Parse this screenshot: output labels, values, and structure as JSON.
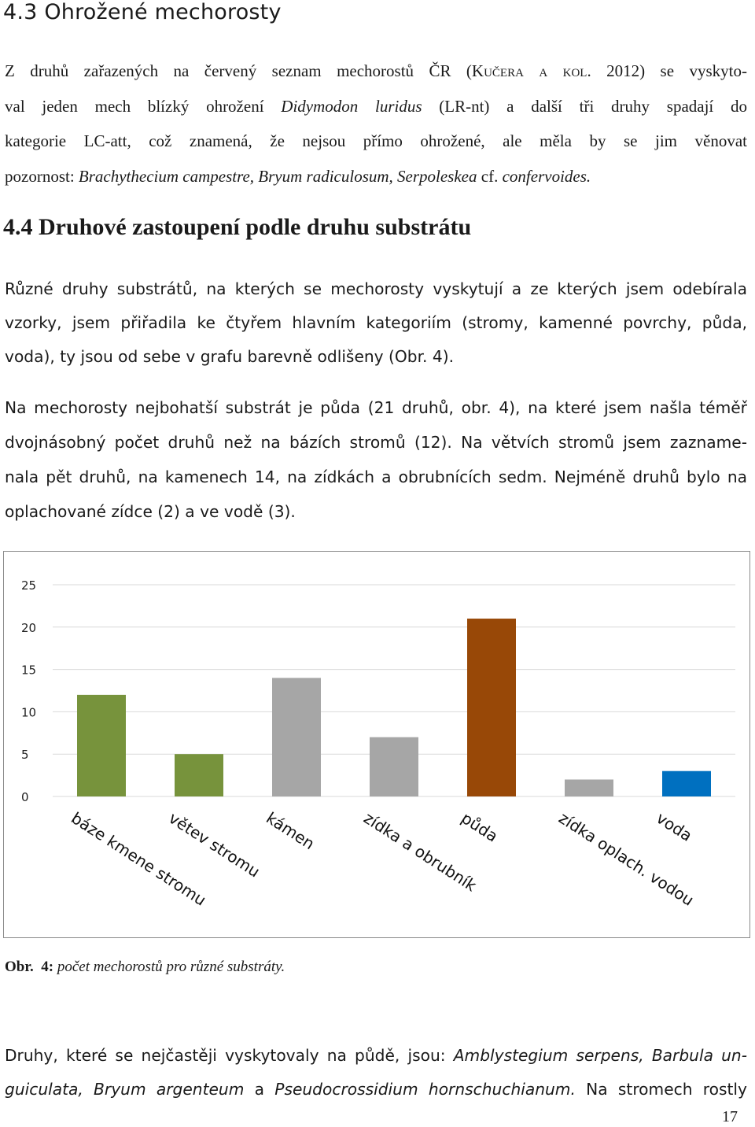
{
  "section_43": {
    "heading": "4.3 Ohrožené mechorosty",
    "p_l1a": "Z druhů zařazených na červený seznam mechorostů ČR (",
    "p_l1_author": "Kučera a kol.",
    "p_l1b": " 2012) se vyskyto-",
    "p_l2a": "val jeden mech blízký ohrožení ",
    "p_l2_species": "Didymodon luridus",
    "p_l2b": " (LR-nt) a další tři druhy spadají do",
    "p_l3": "kategorie LC-att, což znamená, že nejsou přímo ohrožené, ale měla by se jim věnovat",
    "p_l4a": "pozornost: ",
    "p_l4_species": "Brachythecium campestre, Bryum radiculosum, Serpoleskea",
    "p_l4_cf": " cf. ",
    "p_l4_species2": "confervoides."
  },
  "section_44": {
    "heading": "4.4 Druhové zastoupení podle druhu substrátu",
    "p1_l1": "Různé druhy substrátů, na kterých se mechorosty vyskytují a ze kterých jsem odebírala",
    "p1_l2": "vzorky, jsem přiřadila ke čtyřem hlavním kategoriím (stromy, kamenné povrchy, půda,",
    "p1_l3": "voda), ty jsou od sebe v grafu barevně odlišeny (Obr. 4).",
    "p2_l1": "Na mechorosty nejbohatší substrát je půda (21 druhů, obr. 4), na které jsem našla téměř",
    "p2_l2": "dvojnásobný počet druhů než na bázích stromů (12). Na větvích stromů jsem zazname-",
    "p2_l3": "nala pět druhů, na kamenech 14, na zídkách a obrubnících sedm. Nejméně druhů bylo na",
    "p2_l4": "oplachované zídce (2) a ve vodě (3)."
  },
  "chart_data": {
    "type": "bar",
    "categories": [
      "báze kmene stromu",
      "větev stromu",
      "kámen",
      "zídka a obrubník",
      "půda",
      "zídka oplach. vodou",
      "voda"
    ],
    "values": [
      12,
      5,
      14,
      7,
      21,
      2,
      3
    ],
    "colors": [
      "#77933c",
      "#77933c",
      "#a6a6a6",
      "#a6a6a6",
      "#984807",
      "#a6a6a6",
      "#0070c0"
    ],
    "ylim": [
      0,
      25
    ],
    "yticks": [
      "0",
      "5",
      "10",
      "15",
      "20",
      "25"
    ],
    "grid": true,
    "title": "",
    "xlabel": "",
    "ylabel": ""
  },
  "caption": {
    "label": "Obr.",
    "number": "4:",
    "text": "počet mechorostů pro různé substráty."
  },
  "section_next": {
    "l1a": "Druhy, které se nejčastěji vyskytovaly na půdě, jsou: ",
    "l1_species": "Amblystegium serpens, Barbula un-",
    "l2_species": "guiculata, Bryum argenteum",
    "l2_a": " a ",
    "l2_species2": "Pseudocrossidium hornschuchianum.",
    "l2b": " Na stromech rostly"
  },
  "page_number": "17"
}
